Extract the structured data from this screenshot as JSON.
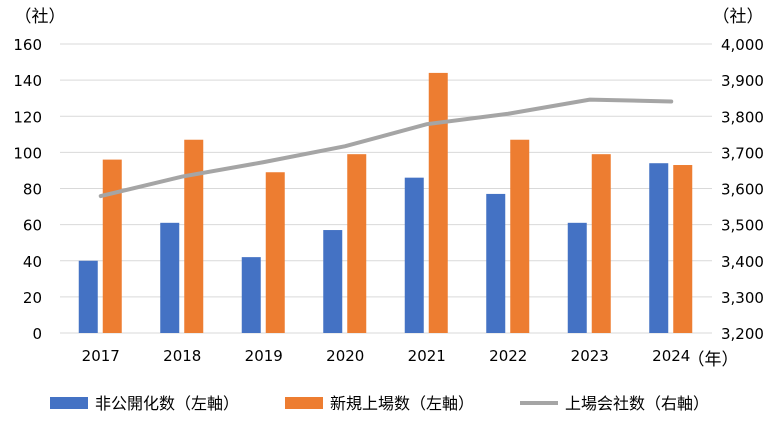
{
  "chart_data": {
    "type": "bar",
    "categories": [
      "2017",
      "2018",
      "2019",
      "2020",
      "2021",
      "2022",
      "2023",
      "2024"
    ],
    "series": [
      {
        "name": "非公開化数（左軸）",
        "type": "bar",
        "axis": "left",
        "color": "#4472C4",
        "values": [
          40,
          61,
          42,
          57,
          86,
          77,
          61,
          94
        ]
      },
      {
        "name": "新規上場数（左軸）",
        "type": "bar",
        "axis": "left",
        "color": "#ED7D31",
        "values": [
          96,
          107,
          89,
          99,
          144,
          107,
          99,
          93
        ]
      },
      {
        "name": "上場会社数（右軸）",
        "type": "line",
        "axis": "right",
        "color": "#A5A5A5",
        "values": [
          3579,
          3633,
          3673,
          3717,
          3778,
          3807,
          3846,
          3841
        ]
      }
    ],
    "ylabel_left": "（社）",
    "ylabel_right": "（社）",
    "xlabel": "（年）",
    "ylim_left": [
      0,
      160
    ],
    "yticks_left": [
      "0",
      "20",
      "40",
      "60",
      "80",
      "100",
      "120",
      "140",
      "160"
    ],
    "ylim_right": [
      3200,
      4000
    ],
    "yticks_right": [
      "3,200",
      "3,300",
      "3,400",
      "3,500",
      "3,600",
      "3,700",
      "3,800",
      "3,900",
      "4,000"
    ],
    "grid": true,
    "legend_position": "bottom"
  }
}
